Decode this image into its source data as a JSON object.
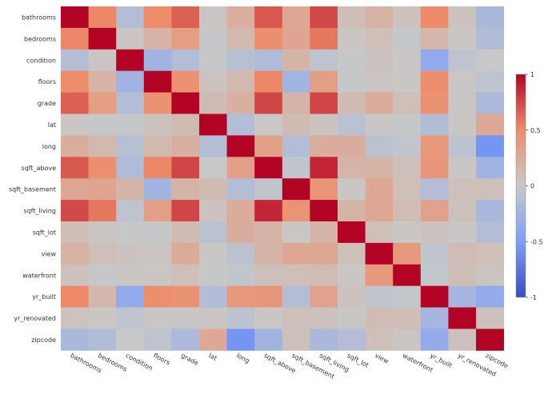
{
  "chart_data": {
    "type": "heatmap",
    "title": "",
    "xlabel": "",
    "ylabel": "",
    "variables": [
      "bathrooms",
      "bedrooms",
      "condition",
      "floors",
      "grade",
      "lat",
      "long",
      "sqft_above",
      "sqft_basement",
      "sqft_living",
      "sqft_lot",
      "view",
      "waterfront",
      "yr_built",
      "yr_renovated",
      "zipcode"
    ],
    "matrix": [
      [
        1.0,
        0.52,
        -0.13,
        0.5,
        0.66,
        0.02,
        0.22,
        0.69,
        0.28,
        0.75,
        0.09,
        0.19,
        0.06,
        0.51,
        0.05,
        -0.2
      ],
      [
        0.52,
        1.0,
        0.03,
        0.18,
        0.36,
        -0.01,
        0.13,
        0.48,
        0.3,
        0.58,
        0.03,
        0.08,
        -0.01,
        0.15,
        0.02,
        -0.15
      ],
      [
        -0.13,
        0.03,
        1.0,
        -0.26,
        -0.14,
        -0.01,
        -0.11,
        -0.16,
        0.17,
        -0.06,
        -0.01,
        0.05,
        0.02,
        -0.36,
        -0.06,
        0.0
      ],
      [
        0.5,
        0.18,
        -0.26,
        1.0,
        0.46,
        0.05,
        0.13,
        0.52,
        -0.25,
        0.35,
        -0.01,
        0.03,
        0.02,
        0.49,
        0.01,
        -0.06
      ],
      [
        0.66,
        0.36,
        -0.14,
        0.46,
        1.0,
        0.11,
        0.2,
        0.76,
        0.17,
        0.76,
        0.11,
        0.25,
        0.08,
        0.45,
        0.01,
        -0.18
      ],
      [
        0.02,
        -0.01,
        -0.01,
        0.05,
        0.11,
        1.0,
        -0.14,
        0.0,
        0.11,
        0.05,
        -0.09,
        0.01,
        -0.01,
        -0.15,
        0.03,
        0.27
      ],
      [
        0.22,
        0.13,
        -0.11,
        0.13,
        0.2,
        -0.14,
        1.0,
        0.34,
        -0.14,
        0.24,
        0.23,
        -0.08,
        -0.04,
        0.41,
        -0.07,
        -0.56
      ],
      [
        0.69,
        0.48,
        -0.16,
        0.52,
        0.76,
        0.0,
        0.34,
        1.0,
        -0.05,
        0.88,
        0.18,
        0.17,
        0.07,
        0.42,
        0.02,
        -0.26
      ],
      [
        0.28,
        0.3,
        0.17,
        -0.25,
        0.17,
        0.11,
        -0.14,
        -0.05,
        1.0,
        0.44,
        0.02,
        0.28,
        0.08,
        -0.13,
        0.07,
        0.07
      ],
      [
        0.75,
        0.58,
        -0.06,
        0.35,
        0.76,
        0.05,
        0.24,
        0.88,
        0.44,
        1.0,
        0.17,
        0.28,
        0.1,
        0.32,
        0.06,
        -0.2
      ],
      [
        0.09,
        0.03,
        -0.01,
        -0.01,
        0.11,
        -0.09,
        0.23,
        0.18,
        0.02,
        0.17,
        1.0,
        0.08,
        0.02,
        0.05,
        0.01,
        -0.13
      ],
      [
        0.19,
        0.08,
        0.05,
        0.03,
        0.25,
        0.01,
        -0.08,
        0.17,
        0.28,
        0.28,
        0.08,
        1.0,
        0.4,
        -0.05,
        0.1,
        0.08
      ],
      [
        0.06,
        -0.01,
        0.02,
        0.02,
        0.08,
        -0.01,
        -0.04,
        0.07,
        0.08,
        0.1,
        0.02,
        0.4,
        1.0,
        -0.03,
        0.09,
        0.03
      ],
      [
        0.51,
        0.15,
        -0.36,
        0.49,
        0.45,
        -0.15,
        0.41,
        0.42,
        -0.13,
        0.32,
        0.05,
        -0.05,
        -0.03,
        1.0,
        -0.22,
        -0.35
      ],
      [
        0.05,
        0.02,
        -0.06,
        0.01,
        0.01,
        0.03,
        -0.07,
        0.02,
        0.07,
        0.06,
        0.01,
        0.1,
        0.09,
        -0.22,
        1.0,
        0.06
      ],
      [
        -0.2,
        -0.15,
        0.0,
        -0.06,
        -0.18,
        0.27,
        -0.56,
        -0.26,
        0.07,
        -0.2,
        -0.13,
        0.08,
        0.03,
        -0.35,
        0.06,
        1.0
      ]
    ],
    "colorscale": "coolwarm",
    "zlim": [
      -1,
      1
    ],
    "colorbar_ticks": [
      1,
      0.5,
      0,
      -0.5,
      -1
    ],
    "colorbar_placement": "right",
    "grid": false
  }
}
